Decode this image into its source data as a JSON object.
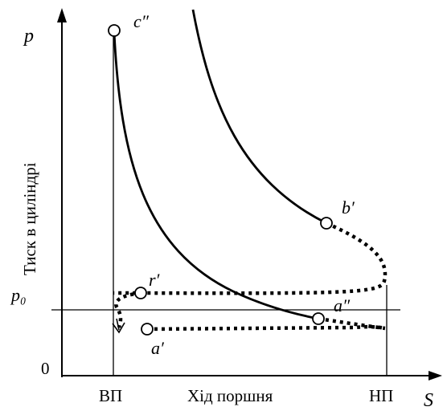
{
  "diagram": {
    "axes": {
      "y_axis_symbol": "p",
      "x_axis_symbol": "S",
      "y_axis_title": "Тиск в циліндрі",
      "x_axis_title": "Хід поршня",
      "origin": "0",
      "pressure_level": "p₀",
      "tdc_label": "ВП",
      "bdc_label": "НП"
    },
    "points": {
      "c2": "c″",
      "b1": "b′",
      "r1": "r′",
      "a2": "a″",
      "a1": "a′"
    },
    "curves": {
      "compression_expansion": "solid",
      "exhaust_intake_loop": "dotted"
    }
  }
}
